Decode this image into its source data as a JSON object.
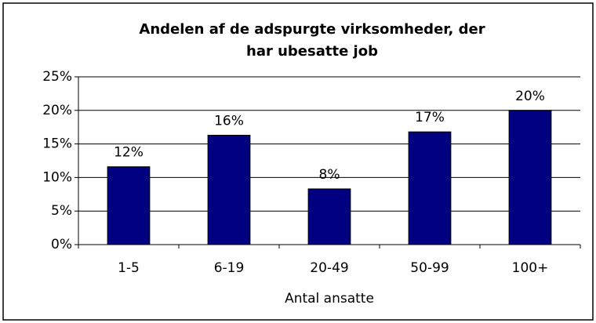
{
  "chart_data": {
    "type": "bar",
    "title": [
      "Andelen af de adspurgte virksomheder, der",
      "har ubesatte job"
    ],
    "x_label": "Antal ansatte",
    "categories": [
      "1-5",
      "6-19",
      "20-49",
      "50-99",
      "100+"
    ],
    "values": [
      11.6,
      16.3,
      8.3,
      16.8,
      20.0
    ],
    "value_labels": [
      "12%",
      "16%",
      "8%",
      "17%",
      "20%"
    ],
    "color": "#000080",
    "ylim": [
      0,
      25
    ],
    "yticks": [
      {
        "value": 0,
        "label": "0%"
      },
      {
        "value": 5,
        "label": "5%"
      },
      {
        "value": 10,
        "label": "10%"
      },
      {
        "value": 15,
        "label": "15%"
      },
      {
        "value": 20,
        "label": "20%"
      },
      {
        "value": 25,
        "label": "25%"
      }
    ],
    "grid": true
  }
}
